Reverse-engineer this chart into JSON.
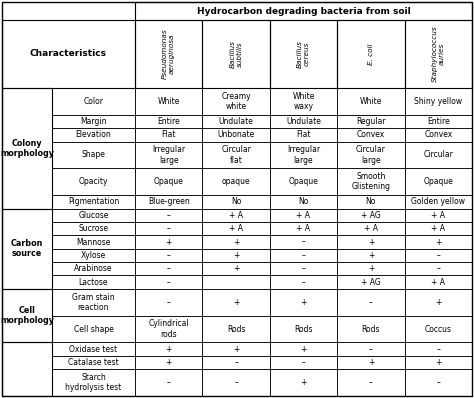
{
  "title": "Hydrocarbon degrading bacteria from soil",
  "col_headers_italic": [
    "Pseudomonas\naeruginosa",
    "Bacillus\nsubtilis",
    "Bacillus\ncereus",
    "E. coli",
    "Staphylococcus\nauries"
  ],
  "row_labels": [
    "Color",
    "Margin",
    "Elevation",
    "Shape",
    "Opacity",
    "Pigmentation",
    "Glucose",
    "Sucrose",
    "Mannose",
    "Xylose",
    "Arabinose",
    "Lactose",
    "Gram stain\nreaction",
    "Cell shape",
    "Oxidase test",
    "Catalase test",
    "Starch\nhydrolysis test"
  ],
  "cells": [
    [
      "White",
      "Creamy\nwhite",
      "White\nwaxy",
      "White",
      "Shiny yellow"
    ],
    [
      "Entire",
      "Undulate",
      "Undulate",
      "Regular",
      "Entire"
    ],
    [
      "Flat",
      "Unbonate",
      "Flat",
      "Convex",
      "Convex"
    ],
    [
      "Irregular\nlarge",
      "Circular\nflat",
      "Irregular\nlarge",
      "Circular\nlarge",
      "Circular"
    ],
    [
      "Opaque",
      "opaque",
      "Opaque",
      "Smooth\nGlistening",
      "Opaque"
    ],
    [
      "Blue-green",
      "No",
      "No",
      "No",
      "Golden yellow"
    ],
    [
      "–",
      "+ A",
      "+ A",
      "+ AG",
      "+ A"
    ],
    [
      "–",
      "+ A",
      "+ A",
      "+ A",
      "+ A"
    ],
    [
      "+",
      "+",
      "–",
      "+",
      "+"
    ],
    [
      "–",
      "+",
      "–",
      "+",
      "–"
    ],
    [
      "–",
      "+",
      "–",
      "+",
      "–"
    ],
    [
      "–",
      "",
      "–",
      "+ AG",
      "+ A"
    ],
    [
      "–",
      "+",
      "+",
      "–",
      "+"
    ],
    [
      "Cylindrical\nrods",
      "Rods",
      "Rods",
      "Rods",
      "Coccus"
    ],
    [
      "+",
      "+",
      "+",
      "–",
      "–"
    ],
    [
      "+",
      "–",
      "–",
      "+",
      "+"
    ],
    [
      "–",
      "–",
      "+",
      "–",
      "–"
    ]
  ],
  "group_spans": [
    {
      "label": "Colony\nmorphology",
      "start": 0,
      "end": 5
    },
    {
      "label": "Carbon\nsource",
      "start": 6,
      "end": 11
    },
    {
      "label": "Cell\nmorphology",
      "start": 12,
      "end": 13
    },
    {
      "label": "",
      "start": 14,
      "end": 16
    }
  ],
  "characteristics_label": "Characteristics",
  "bg_color": "#ffffff"
}
